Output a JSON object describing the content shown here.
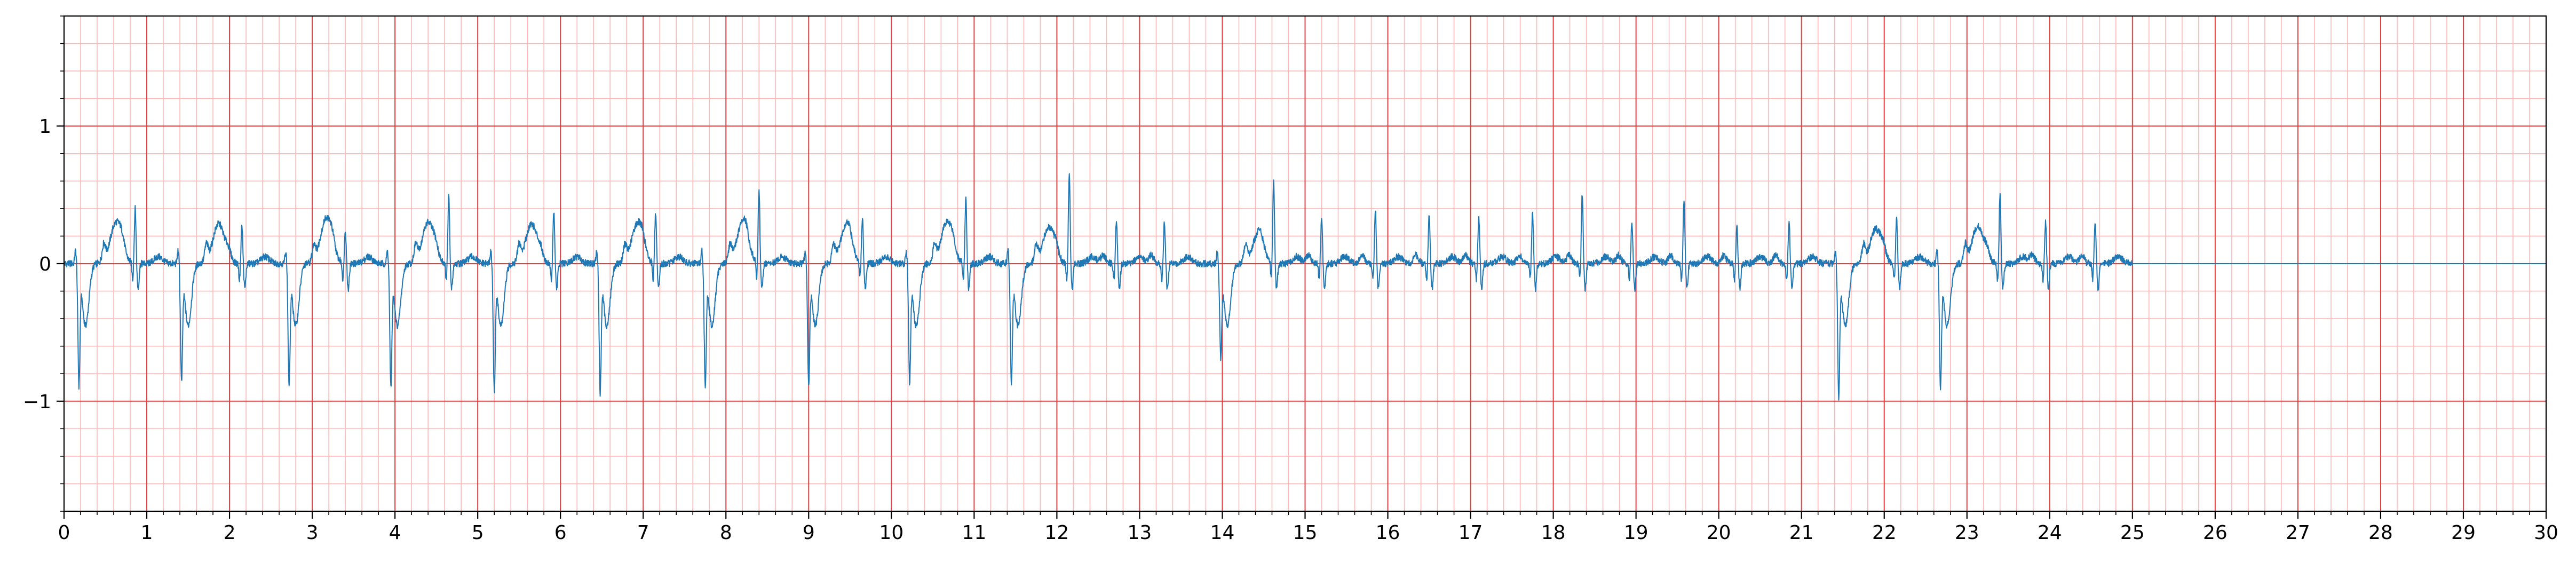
{
  "chart_data": {
    "type": "line",
    "title": "",
    "xlabel": "",
    "ylabel": "",
    "xlim": [
      0,
      30
    ],
    "ylim": [
      -1.8,
      1.8
    ],
    "x_ticks": [
      0,
      1,
      2,
      3,
      4,
      5,
      6,
      7,
      8,
      9,
      10,
      11,
      12,
      13,
      14,
      15,
      16,
      17,
      18,
      19,
      20,
      21,
      22,
      23,
      24,
      25,
      26,
      27,
      28,
      29,
      30
    ],
    "x_tick_labels": [
      "0",
      "1",
      "2",
      "3",
      "4",
      "5",
      "6",
      "7",
      "8",
      "9",
      "10",
      "11",
      "12",
      "13",
      "14",
      "15",
      "16",
      "17",
      "18",
      "19",
      "20",
      "21",
      "22",
      "23",
      "24",
      "25",
      "26",
      "27",
      "28",
      "29",
      "30"
    ],
    "y_ticks": [
      -1,
      0,
      1
    ],
    "y_tick_labels": [
      "−1",
      "0",
      "1"
    ],
    "grid": {
      "major": true,
      "minor": true,
      "major_step": {
        "x": 1,
        "y": 1
      },
      "minor_step": {
        "x": 0.2,
        "y": 0.2
      },
      "major_color": "#e04040",
      "minor_color": "#ffb8b8"
    },
    "legend": "none",
    "series": [
      {
        "color": "#1f77b4",
        "signal_end": 25.0,
        "baseline_after_end": 0.0,
        "beats": [
          {
            "t": 0.18,
            "r": -0.83,
            "t_wave": 0.3,
            "k": "v"
          },
          {
            "t": 0.86,
            "r": 0.4,
            "t_wave": 0.05,
            "k": "n"
          },
          {
            "t": 1.42,
            "r": -0.8,
            "t_wave": 0.29,
            "k": "v"
          },
          {
            "t": 2.15,
            "r": 0.28,
            "t_wave": 0.05,
            "k": "n"
          },
          {
            "t": 2.72,
            "r": -0.83,
            "t_wave": 0.33,
            "k": "v"
          },
          {
            "t": 3.4,
            "r": 0.25,
            "t_wave": 0.05,
            "k": "n"
          },
          {
            "t": 3.95,
            "r": -0.85,
            "t_wave": 0.3,
            "k": "v"
          },
          {
            "t": 4.65,
            "r": 0.49,
            "t_wave": 0.05,
            "k": "n"
          },
          {
            "t": 5.2,
            "r": -0.88,
            "t_wave": 0.29,
            "k": "v"
          },
          {
            "t": 5.92,
            "r": 0.38,
            "t_wave": 0.05,
            "k": "n"
          },
          {
            "t": 6.48,
            "r": -0.88,
            "t_wave": 0.29,
            "k": "v"
          },
          {
            "t": 7.15,
            "r": 0.36,
            "t_wave": 0.05,
            "k": "n"
          },
          {
            "t": 7.75,
            "r": -0.83,
            "t_wave": 0.29,
            "k": "v"
          },
          {
            "t": 8.4,
            "r": 0.53,
            "t_wave": 0.05,
            "k": "n"
          },
          {
            "t": 9.0,
            "r": -0.83,
            "t_wave": 0.26,
            "k": "v"
          },
          {
            "t": 9.65,
            "r": 0.33,
            "t_wave": 0.05,
            "k": "n"
          },
          {
            "t": 10.22,
            "r": -0.8,
            "t_wave": 0.3,
            "k": "v"
          },
          {
            "t": 10.9,
            "r": 0.47,
            "t_wave": 0.05,
            "k": "n"
          },
          {
            "t": 11.45,
            "r": -0.82,
            "t_wave": 0.26,
            "k": "v"
          },
          {
            "t": 12.15,
            "r": 0.66,
            "t_wave": 0.05,
            "k": "n"
          },
          {
            "t": 12.72,
            "r": 0.32,
            "t_wave": 0.05,
            "k": "n"
          },
          {
            "t": 13.3,
            "r": 0.3,
            "t_wave": 0.05,
            "k": "n"
          },
          {
            "t": 13.98,
            "r": -0.62,
            "t_wave": 0.2,
            "k": "v"
          },
          {
            "t": 14.62,
            "r": 0.6,
            "t_wave": 0.05,
            "k": "n"
          },
          {
            "t": 15.2,
            "r": 0.33,
            "t_wave": 0.05,
            "k": "n"
          },
          {
            "t": 15.85,
            "r": 0.4,
            "t_wave": 0.05,
            "k": "n"
          },
          {
            "t": 16.5,
            "r": 0.37,
            "t_wave": 0.05,
            "k": "n"
          },
          {
            "t": 17.1,
            "r": 0.33,
            "t_wave": 0.05,
            "k": "n"
          },
          {
            "t": 17.75,
            "r": 0.37,
            "t_wave": 0.05,
            "k": "n"
          },
          {
            "t": 18.35,
            "r": 0.5,
            "t_wave": 0.05,
            "k": "n"
          },
          {
            "t": 18.95,
            "r": 0.3,
            "t_wave": 0.05,
            "k": "n"
          },
          {
            "t": 19.58,
            "r": 0.47,
            "t_wave": 0.05,
            "k": "n"
          },
          {
            "t": 20.22,
            "r": 0.26,
            "t_wave": 0.05,
            "k": "n"
          },
          {
            "t": 20.85,
            "r": 0.3,
            "t_wave": 0.05,
            "k": "n"
          },
          {
            "t": 21.45,
            "r": -0.91,
            "t_wave": 0.25,
            "k": "v"
          },
          {
            "t": 22.15,
            "r": 0.33,
            "t_wave": 0.05,
            "k": "n"
          },
          {
            "t": 22.68,
            "r": -0.84,
            "t_wave": 0.27,
            "k": "v"
          },
          {
            "t": 23.4,
            "r": 0.51,
            "t_wave": 0.05,
            "k": "n"
          },
          {
            "t": 23.95,
            "r": 0.3,
            "t_wave": 0.05,
            "k": "n"
          },
          {
            "t": 24.55,
            "r": 0.3,
            "t_wave": 0.05,
            "k": "n"
          }
        ]
      }
    ]
  }
}
